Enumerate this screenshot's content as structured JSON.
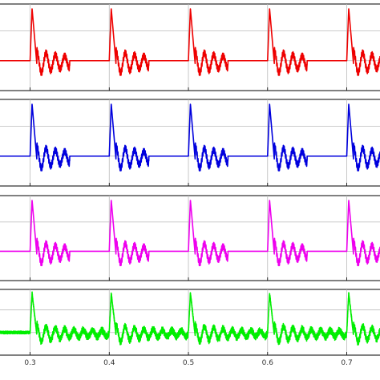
{
  "chart_data": {
    "type": "line",
    "panel_count": 4,
    "grid": true,
    "legend": "none",
    "xlim": [
      0.262,
      0.742
    ],
    "x_ticks": [
      "0.3",
      "0.4",
      "0.5",
      "0.6",
      "0.7"
    ],
    "x_tick_values": [
      0.3,
      0.4,
      0.5,
      0.6,
      0.7
    ],
    "burst_starts": [
      0.3,
      0.4,
      0.5,
      0.6,
      0.7
    ],
    "panels": [
      {
        "color": "#ee0000",
        "burst_duration": 0.05,
        "noise": 0.0,
        "ylim": [
          -1,
          1.9
        ],
        "gridlines": [
          0.0,
          1.0
        ]
      },
      {
        "color": "#0000dd",
        "burst_duration": 0.05,
        "noise": 0.0,
        "ylim": [
          -1,
          1.9
        ],
        "gridlines": [
          0.0,
          1.0
        ]
      },
      {
        "color": "#ee00ee",
        "burst_duration": 0.05,
        "noise": 0.0,
        "ylim": [
          -1,
          1.9
        ],
        "gridlines": [
          0.0,
          1.0
        ]
      },
      {
        "color": "#00ee00",
        "burst_duration": 0.1,
        "noise": 0.06,
        "ylim": [
          -1,
          1.9
        ],
        "gridlines": [
          0.0,
          1.0
        ]
      }
    ]
  }
}
